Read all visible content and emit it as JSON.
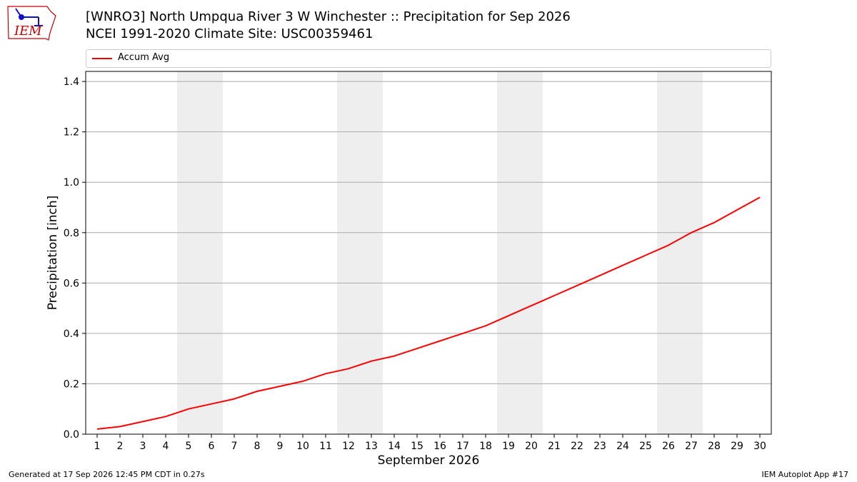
{
  "header": {
    "logo_text": "IEM",
    "title_line1": "[WNRO3] North Umpqua River 3 W Winchester :: Precipitation for Sep 2026",
    "title_line2": "NCEI 1991-2020 Climate Site: USC00359461"
  },
  "footer": {
    "generated": "Generated at 17 Sep 2026 12:45 PM CDT in 0.27s",
    "app": "IEM Autoplot App #17"
  },
  "colors": {
    "series": "#ff0000",
    "weekend_band": "#eeeeee",
    "grid": "#aaaaaa",
    "logo": "#cc0000"
  },
  "chart_data": {
    "type": "line",
    "title": "[WNRO3] North Umpqua River 3 W Winchester :: Precipitation for Sep 2026",
    "subtitle": "NCEI 1991-2020 Climate Site: USC00359461",
    "xlabel": "September 2026",
    "ylabel": "Precipitation [inch]",
    "x": [
      1,
      2,
      3,
      4,
      5,
      6,
      7,
      8,
      9,
      10,
      11,
      12,
      13,
      14,
      15,
      16,
      17,
      18,
      19,
      20,
      21,
      22,
      23,
      24,
      25,
      26,
      27,
      28,
      29,
      30
    ],
    "xticks": [
      "1",
      "2",
      "3",
      "4",
      "5",
      "6",
      "7",
      "8",
      "9",
      "10",
      "11",
      "12",
      "13",
      "14",
      "15",
      "16",
      "17",
      "18",
      "19",
      "20",
      "21",
      "22",
      "23",
      "24",
      "25",
      "26",
      "27",
      "28",
      "29",
      "30"
    ],
    "xlim": [
      0.5,
      30.5
    ],
    "ylim": [
      0,
      1.44
    ],
    "yticks": [
      0.0,
      0.2,
      0.4,
      0.6,
      0.8,
      1.0,
      1.2,
      1.4
    ],
    "ytick_labels": [
      "0.0",
      "0.2",
      "0.4",
      "0.6",
      "0.8",
      "1.0",
      "1.2",
      "1.4"
    ],
    "grid": "y-axis on",
    "legend_position": "top, above plot",
    "weekend_shading": [
      [
        4.5,
        6.5
      ],
      [
        11.5,
        13.5
      ],
      [
        18.5,
        20.5
      ],
      [
        25.5,
        27.5
      ]
    ],
    "series": [
      {
        "name": "Accum Avg",
        "values": [
          0.02,
          0.03,
          0.05,
          0.07,
          0.1,
          0.12,
          0.14,
          0.17,
          0.19,
          0.21,
          0.24,
          0.26,
          0.29,
          0.31,
          0.34,
          0.37,
          0.4,
          0.43,
          0.47,
          0.51,
          0.55,
          0.59,
          0.63,
          0.67,
          0.71,
          0.75,
          0.8,
          0.84,
          0.89,
          0.94
        ]
      }
    ]
  }
}
